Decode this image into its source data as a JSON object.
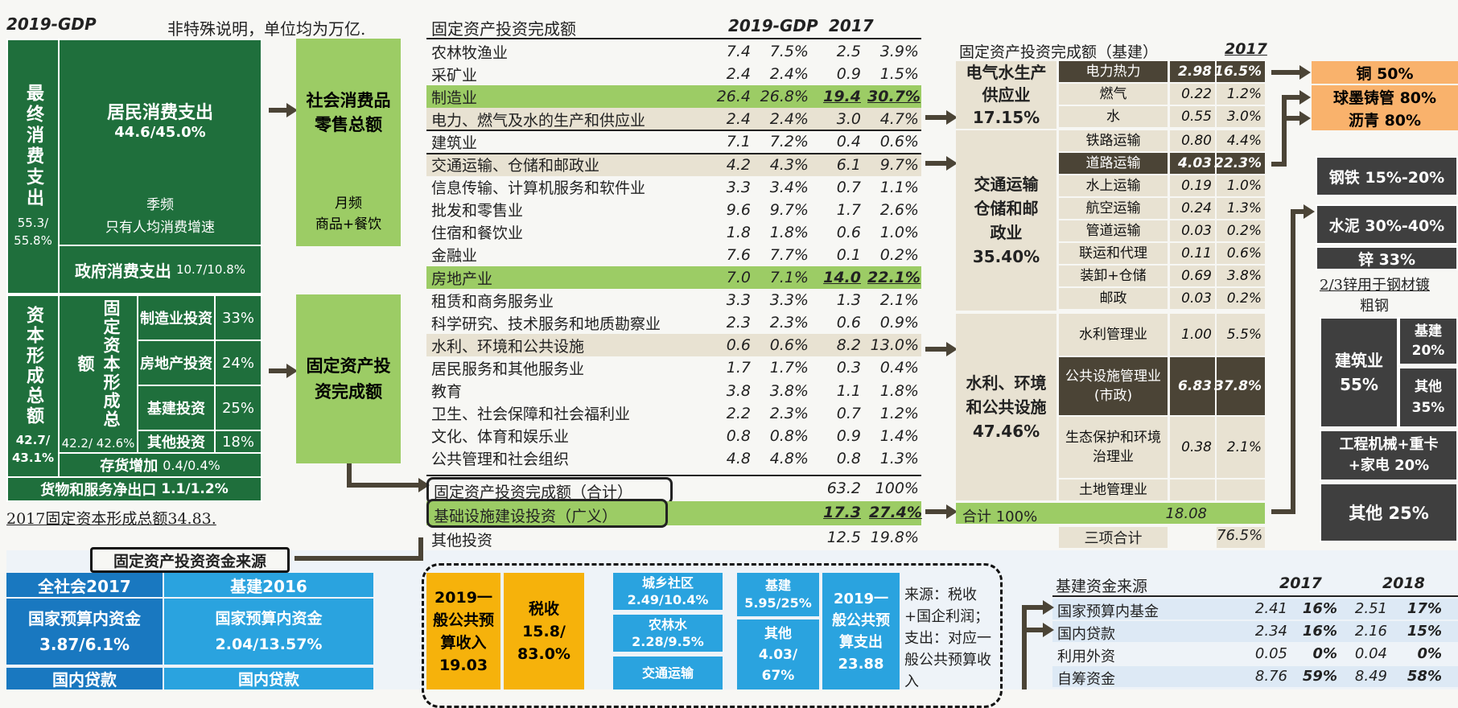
{
  "left": {
    "gdp_label": "2019-GDP",
    "note": "非特殊说明，单位均为万亿.",
    "final_consumption": {
      "title": "最终消费支出",
      "value": "55.3/ 55.8%"
    },
    "resident_consumption": {
      "title": "居民消费支出",
      "value": "44.6/45.0%",
      "freq": "季频",
      "note": "只有人均消费增速"
    },
    "gov_consumption": {
      "title": "政府消费支出",
      "value": "10.7/10.8%"
    },
    "capital_formation": {
      "title": "资本形成总额",
      "value": "42.7/ 43.1%"
    },
    "fixed_capital": {
      "title": "固定资本形成总额",
      "value": "42.2/ 42.6%"
    },
    "fc_items": [
      {
        "name": "制造业投资",
        "pct": "33%"
      },
      {
        "name": "房地产投资",
        "pct": "24%"
      },
      {
        "name": "基建投资",
        "pct": "25%"
      },
      {
        "name": "其他投资",
        "pct": "18%"
      }
    ],
    "inventory": {
      "title": "存货增加",
      "value": "0.4/0.4%"
    },
    "net_export": {
      "title": "货物和服务净出口",
      "value": "1.1/1.2%"
    },
    "footer": "2017固定资本形成总额34.83."
  },
  "middle": {
    "retail": {
      "title": "社会消费品零售总额",
      "freq": "月频",
      "note": "商品+餐饮"
    },
    "fai": {
      "title": "固定资产投资完成额"
    }
  },
  "fai_table": {
    "header": [
      "固定资产投资完成额",
      "2019-GDP",
      "",
      "2017",
      ""
    ],
    "rows": [
      {
        "name": "农林牧渔业",
        "a": "7.4",
        "b": "7.5%",
        "c": "2.5",
        "d": "3.9%",
        "style": ""
      },
      {
        "name": "采矿业",
        "a": "2.4",
        "b": "2.4%",
        "c": "0.9",
        "d": "1.5%",
        "style": ""
      },
      {
        "name": "制造业",
        "a": "26.4",
        "b": "26.8%",
        "c": "19.4",
        "d": "30.7%",
        "style": "green"
      },
      {
        "name": "电力、燃气及水的生产和供应业",
        "a": "2.4",
        "b": "2.4%",
        "c": "3.0",
        "d": "4.7%",
        "style": "tan"
      },
      {
        "name": "建筑业",
        "a": "7.1",
        "b": "7.2%",
        "c": "0.4",
        "d": "0.6%",
        "style": ""
      },
      {
        "name": "交通运输、仓储和邮政业",
        "a": "4.2",
        "b": "4.3%",
        "c": "6.1",
        "d": "9.7%",
        "style": "tan"
      },
      {
        "name": "信息传输、计算机服务和软件业",
        "a": "3.3",
        "b": "3.4%",
        "c": "0.7",
        "d": "1.1%",
        "style": ""
      },
      {
        "name": "批发和零售业",
        "a": "9.6",
        "b": "9.7%",
        "c": "1.7",
        "d": "2.6%",
        "style": ""
      },
      {
        "name": "住宿和餐饮业",
        "a": "1.8",
        "b": "1.8%",
        "c": "0.6",
        "d": "1.0%",
        "style": ""
      },
      {
        "name": "金融业",
        "a": "7.6",
        "b": "7.7%",
        "c": "0.1",
        "d": "0.2%",
        "style": ""
      },
      {
        "name": "房地产业",
        "a": "7.0",
        "b": "7.1%",
        "c": "14.0",
        "d": "22.1%",
        "style": "green"
      },
      {
        "name": "租赁和商务服务业",
        "a": "3.3",
        "b": "3.3%",
        "c": "1.3",
        "d": "2.1%",
        "style": ""
      },
      {
        "name": "科学研究、技术服务和地质勘察业",
        "a": "2.3",
        "b": "2.3%",
        "c": "0.6",
        "d": "0.9%",
        "style": ""
      },
      {
        "name": "水利、环境和公共设施",
        "a": "0.6",
        "b": "0.6%",
        "c": "8.2",
        "d": "13.0%",
        "style": "tan"
      },
      {
        "name": "居民服务和其他服务业",
        "a": "1.7",
        "b": "1.7%",
        "c": "0.3",
        "d": "0.4%",
        "style": ""
      },
      {
        "name": "教育",
        "a": "3.8",
        "b": "3.8%",
        "c": "1.1",
        "d": "1.8%",
        "style": ""
      },
      {
        "name": "卫生、社会保障和社会福利业",
        "a": "2.2",
        "b": "2.3%",
        "c": "0.7",
        "d": "1.2%",
        "style": ""
      },
      {
        "name": "文化、体育和娱乐业",
        "a": "0.8",
        "b": "0.8%",
        "c": "0.9",
        "d": "1.4%",
        "style": ""
      },
      {
        "name": "公共管理和社会组织",
        "a": "4.8",
        "b": "4.8%",
        "c": "0.8",
        "d": "1.3%",
        "style": ""
      }
    ],
    "total": {
      "name": "固定资产投资完成额（合计）",
      "c": "63.2",
      "d": "100%"
    },
    "infra": {
      "name": "基础设施建设投资（广义）",
      "c": "17.3",
      "d": "27.4%"
    },
    "other": {
      "name": "其他投资",
      "c": "12.5",
      "d": "19.8%"
    }
  },
  "infra_table": {
    "header": "固定资产投资完成额（基建）",
    "year": "2017",
    "g1": {
      "title": "电气水生产供应业",
      "pct": "17.15%"
    },
    "g1_rows": [
      {
        "name": "电力热力",
        "v": "2.98",
        "p": "16.5%",
        "dark": true
      },
      {
        "name": "燃气",
        "v": "0.22",
        "p": "1.2%",
        "dark": false
      },
      {
        "name": "水",
        "v": "0.55",
        "p": "3.0%",
        "dark": false
      }
    ],
    "g2": {
      "title": "交通运输仓储和邮政业",
      "pct": "35.40%"
    },
    "g2_rows": [
      {
        "name": "铁路运输",
        "v": "0.80",
        "p": "4.4%",
        "dark": false
      },
      {
        "name": "道路运输",
        "v": "4.03",
        "p": "22.3%",
        "dark": true
      },
      {
        "name": "水上运输",
        "v": "0.19",
        "p": "1.0%",
        "dark": false
      },
      {
        "name": "航空运输",
        "v": "0.24",
        "p": "1.3%",
        "dark": false
      },
      {
        "name": "管道运输",
        "v": "0.03",
        "p": "0.2%",
        "dark": false
      },
      {
        "name": "联运和代理",
        "v": "0.11",
        "p": "0.6%",
        "dark": false
      },
      {
        "name": "装卸+仓储",
        "v": "0.69",
        "p": "3.8%",
        "dark": false
      },
      {
        "name": "邮政",
        "v": "0.03",
        "p": "0.2%",
        "dark": false
      }
    ],
    "g3": {
      "title": "水利、环境和公共设施",
      "pct": "47.46%"
    },
    "g3_rows": [
      {
        "name": "水利管理业",
        "v": "1.00",
        "p": "5.5%"
      },
      {
        "name": "公共设施管理业(市政)",
        "v": "6.83",
        "p": "37.8%"
      },
      {
        "name": "生态保护和环境治理业",
        "v": "0.38",
        "p": "2.1%"
      },
      {
        "name": "土地管理业",
        "v": "",
        "p": ""
      }
    ],
    "sum": {
      "name": "合计 100%",
      "v": "18.08"
    },
    "three": {
      "name": "三项合计",
      "p": "76.5%"
    }
  },
  "right": {
    "orange": [
      "铜 50%",
      "球墨铸管 80%",
      "沥青 80%"
    ],
    "grey": [
      "钢铁 15%-20%",
      "水泥 30%-40%",
      "锌 33%"
    ],
    "note1": "2/3锌用于钢材镀",
    "note2": "粗钢",
    "construction": {
      "title": "建筑业",
      "pct": "55%"
    },
    "infra": {
      "title": "基建",
      "pct": "20%"
    },
    "other_small": {
      "title": "其他",
      "pct": "35%"
    },
    "machinery": "工程机械+重卡+家电 20%",
    "other_big": "其他 25%"
  },
  "funding": {
    "title": "固定资产投资资金来源",
    "col1": "全社会2017",
    "col2": "基建2016",
    "a1": {
      "title": "国家预算内资金",
      "value": "3.87/6.1%"
    },
    "a2": {
      "title": "国家预算内资金",
      "value": "2.04/13.57%"
    },
    "b1": "国内贷款",
    "b2": "国内贷款",
    "rev": {
      "title": "2019一般公共预算收入",
      "value": "19.03"
    },
    "tax": {
      "title": "税收",
      "value": "15.8/ 83.0%"
    },
    "spend_items": [
      {
        "title": "城乡社区",
        "value": "2.49/10.4%"
      },
      {
        "title": "农林水",
        "value": "2.28/9.5%"
      },
      {
        "title": "交通运输",
        "value": ""
      }
    ],
    "jj": {
      "title": "基建",
      "value": "5.95/25%"
    },
    "qt": {
      "title": "其他",
      "value": "4.03/ 67%"
    },
    "exp": {
      "title": "2019一般公共预算支出",
      "value": "23.88"
    },
    "src_note": "来源：税收+国企利润；支出：对应一般公共预算收入",
    "infra_src": {
      "header": "基建资金来源",
      "y1": "2017",
      "y2": "2018",
      "rows": [
        {
          "name": "国家预算内基金",
          "a": "2.41",
          "b": "16%",
          "c": "2.51",
          "d": "17%"
        },
        {
          "name": "国内贷款",
          "a": "2.34",
          "b": "16%",
          "c": "2.16",
          "d": "15%"
        },
        {
          "name": "利用外资",
          "a": "0.05",
          "b": "0%",
          "c": "0.04",
          "d": "0%"
        },
        {
          "name": "自筹资金",
          "a": "8.76",
          "b": "59%",
          "c": "8.49",
          "d": "58%"
        }
      ]
    }
  }
}
